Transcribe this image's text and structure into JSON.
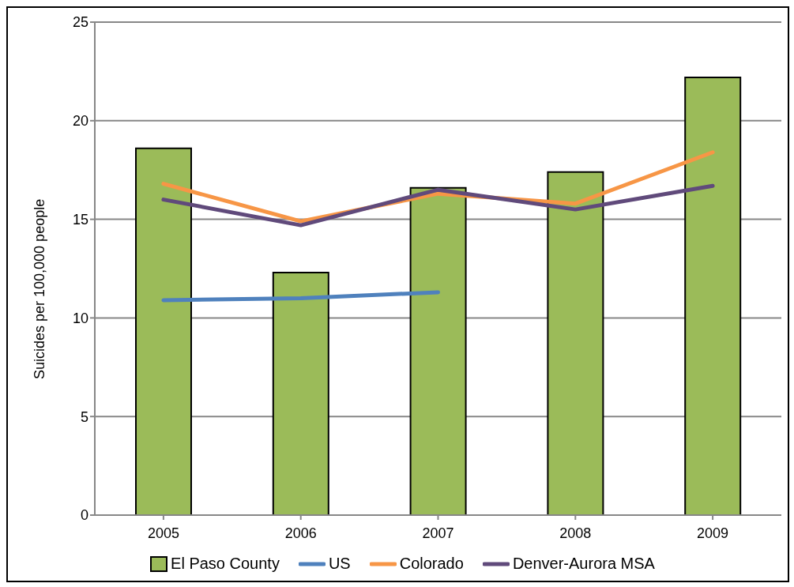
{
  "chart_data": {
    "type": "bar",
    "ylabel": "Suicides per 100,000 people",
    "categories": [
      "2005",
      "2006",
      "2007",
      "2008",
      "2009"
    ],
    "series": [
      {
        "name": "El Paso County",
        "color": "#9bbb59",
        "values": [
          18.6,
          12.3,
          16.6,
          17.4,
          22.2
        ]
      },
      {
        "name": "US",
        "type": "line",
        "color": "#4f81bd",
        "values": [
          10.9,
          11.0,
          11.3,
          null,
          null
        ]
      },
      {
        "name": "Colorado",
        "type": "line",
        "color": "#f79646",
        "values": [
          16.8,
          14.9,
          16.3,
          15.8,
          18.4
        ]
      },
      {
        "name": "Denver-Aurora MSA",
        "type": "line",
        "color": "#604a7b",
        "values": [
          16.0,
          14.7,
          16.5,
          15.5,
          16.7
        ]
      }
    ],
    "ylim": [
      0,
      25
    ],
    "yticks": [
      0,
      5,
      10,
      15,
      20,
      25
    ],
    "grid": "y",
    "legend": "bottom",
    "marker": "none",
    "line_style": "solid"
  }
}
